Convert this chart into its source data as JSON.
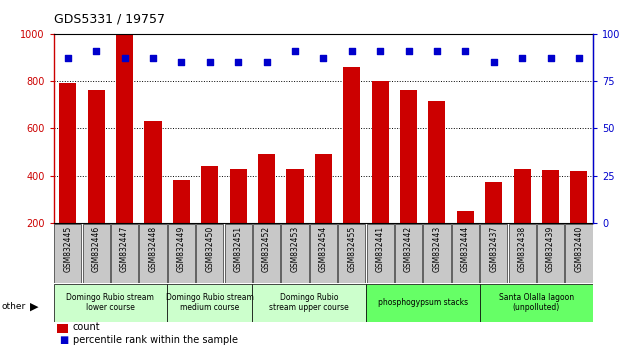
{
  "title": "GDS5331 / 19757",
  "samples": [
    "GSM832445",
    "GSM832446",
    "GSM832447",
    "GSM832448",
    "GSM832449",
    "GSM832450",
    "GSM832451",
    "GSM832452",
    "GSM832453",
    "GSM832454",
    "GSM832455",
    "GSM832441",
    "GSM832442",
    "GSM832443",
    "GSM832444",
    "GSM832437",
    "GSM832438",
    "GSM832439",
    "GSM832440"
  ],
  "counts": [
    790,
    760,
    1000,
    630,
    380,
    440,
    430,
    490,
    430,
    490,
    860,
    800,
    760,
    715,
    250,
    375,
    430,
    425,
    420
  ],
  "percentiles": [
    87,
    91,
    87,
    87,
    85,
    85,
    85,
    85,
    91,
    87,
    91,
    91,
    91,
    91,
    91,
    85,
    87,
    87,
    87
  ],
  "groups": [
    {
      "label": "Domingo Rubio stream\nlower course",
      "start": 0,
      "end": 4,
      "color": "#ccffcc"
    },
    {
      "label": "Domingo Rubio stream\nmedium course",
      "start": 4,
      "end": 7,
      "color": "#ccffcc"
    },
    {
      "label": "Domingo Rubio\nstream upper course",
      "start": 7,
      "end": 11,
      "color": "#ccffcc"
    },
    {
      "label": "phosphogypsum stacks",
      "start": 11,
      "end": 15,
      "color": "#66ff66"
    },
    {
      "label": "Santa Olalla lagoon\n(unpolluted)",
      "start": 15,
      "end": 19,
      "color": "#66ff66"
    }
  ],
  "bar_color": "#cc0000",
  "dot_color": "#0000cc",
  "ylim_left": [
    200,
    1000
  ],
  "ylim_right": [
    0,
    100
  ],
  "yticks_left": [
    200,
    400,
    600,
    800,
    1000
  ],
  "yticks_right": [
    0,
    25,
    50,
    75,
    100
  ],
  "tick_label_bg": "#c8c8c8"
}
